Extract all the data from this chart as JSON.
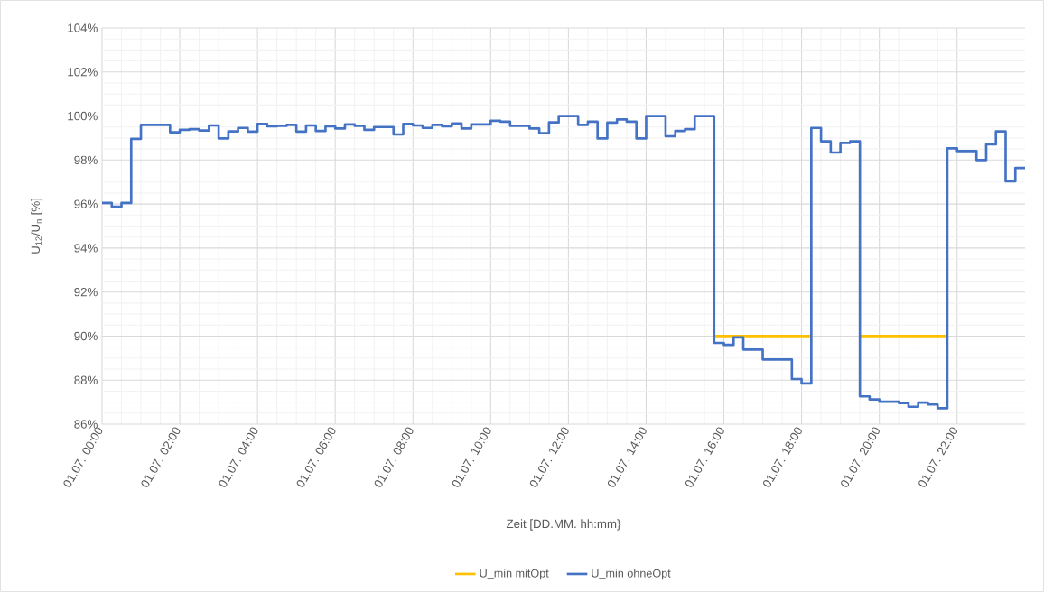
{
  "chart_data": {
    "type": "step",
    "xlabel": "Zeit [DD.MM. hh:mm}",
    "ylabel": "U$_{12}$/U$_{n}$ [%]",
    "xlim": [
      "--07-01T00:00",
      "--07-01T23:45"
    ],
    "ylim": [
      86,
      104
    ],
    "xticks": [
      {
        "value": "--07-01T00:00",
        "label": "01.07. 00:00"
      },
      {
        "value": "--07-01T02:00",
        "label": "01.07. 02:00"
      },
      {
        "value": "--07-01T04:00",
        "label": "01.07. 04:00"
      },
      {
        "value": "--07-01T06:00",
        "label": "01.07. 06:00"
      },
      {
        "value": "--07-01T08:00",
        "label": "01.07. 08:00"
      },
      {
        "value": "--07-01T10:00",
        "label": "01.07. 10:00"
      },
      {
        "value": "--07-01T12:00",
        "label": "01.07. 12:00"
      },
      {
        "value": "--07-01T14:00",
        "label": "01.07. 14:00"
      },
      {
        "value": "--07-01T16:00",
        "label": "01.07. 16:00"
      },
      {
        "value": "--07-01T18:00",
        "label": "01.07. 18:00"
      },
      {
        "value": "--07-01T20:00",
        "label": "01.07. 20:00"
      },
      {
        "value": "--07-01T22:00",
        "label": "01.07. 22:00"
      }
    ],
    "yticks": [
      {
        "value": 86,
        "label": "86%"
      },
      {
        "value": 88,
        "label": "88%"
      },
      {
        "value": 90,
        "label": "90%"
      },
      {
        "value": 92,
        "label": "92%"
      },
      {
        "value": 94,
        "label": "94%"
      },
      {
        "value": 96,
        "label": "96%"
      },
      {
        "value": 98,
        "label": "98%"
      },
      {
        "value": 100,
        "label": "100%"
      },
      {
        "value": 102,
        "label": "102%"
      },
      {
        "value": 104,
        "label": "104%"
      }
    ],
    "grid": true,
    "legend": "bottom",
    "line_style": "solid",
    "series": [
      {
        "name": "U_min mitOpt",
        "color": "#ffc000",
        "x": [
          "--07-01T15:45",
          "--07-01T18:15",
          "--07-01T19:30",
          "--07-01T21:45"
        ],
        "values": [
          90,
          null,
          90,
          90
        ]
      },
      {
        "name": "U_min ohneOpt",
        "color": "#4472c4",
        "x": [
          "--07-01T00:00",
          "--07-01T00:15",
          "--07-01T00:30",
          "--07-01T00:45",
          "--07-01T01:00",
          "--07-01T01:45",
          "--07-01T02:00",
          "--07-01T02:15",
          "--07-01T02:30",
          "--07-01T02:45",
          "--07-01T03:00",
          "--07-01T03:15",
          "--07-01T03:30",
          "--07-01T03:45",
          "--07-01T04:00",
          "--07-01T04:15",
          "--07-01T04:30",
          "--07-01T04:45",
          "--07-01T05:00",
          "--07-01T05:15",
          "--07-01T05:30",
          "--07-01T05:45",
          "--07-01T06:00",
          "--07-01T06:15",
          "--07-01T06:30",
          "--07-01T06:45",
          "--07-01T07:00",
          "--07-01T07:30",
          "--07-01T07:45",
          "--07-01T08:00",
          "--07-01T08:15",
          "--07-01T08:30",
          "--07-01T08:45",
          "--07-01T09:00",
          "--07-01T09:15",
          "--07-01T09:30",
          "--07-01T10:00",
          "--07-01T10:15",
          "--07-01T10:30",
          "--07-01T11:00",
          "--07-01T11:15",
          "--07-01T11:30",
          "--07-01T11:45",
          "--07-01T12:15",
          "--07-01T12:30",
          "--07-01T12:45",
          "--07-01T13:00",
          "--07-01T13:15",
          "--07-01T13:30",
          "--07-01T13:45",
          "--07-01T14:00",
          "--07-01T14:30",
          "--07-01T14:45",
          "--07-01T15:00",
          "--07-01T15:15",
          "--07-01T15:45",
          "--07-01T16:00",
          "--07-01T16:15",
          "--07-01T16:30",
          "--07-01T17:00",
          "--07-01T17:45",
          "--07-01T18:00",
          "--07-01T18:15",
          "--07-01T18:30",
          "--07-01T18:45",
          "--07-01T19:00",
          "--07-01T19:15",
          "--07-01T19:30",
          "--07-01T19:45",
          "--07-01T20:00",
          "--07-01T20:30",
          "--07-01T20:45",
          "--07-01T21:00",
          "--07-01T21:15",
          "--07-01T21:30",
          "--07-01T21:45",
          "--07-01T22:00",
          "--07-01T22:30",
          "--07-01T22:45",
          "--07-01T23:00",
          "--07-01T23:15",
          "--07-01T23:30",
          "--07-01T23:45"
        ],
        "values": [
          96.05,
          95.88,
          96.05,
          98.96,
          99.6,
          99.26,
          99.37,
          99.4,
          99.34,
          99.57,
          98.98,
          99.3,
          99.46,
          99.29,
          99.64,
          99.53,
          99.55,
          99.6,
          99.29,
          99.57,
          99.32,
          99.53,
          99.43,
          99.62,
          99.55,
          99.37,
          99.5,
          99.16,
          99.64,
          99.57,
          99.46,
          99.6,
          99.53,
          99.66,
          99.43,
          99.62,
          99.78,
          99.74,
          99.55,
          99.43,
          99.22,
          99.71,
          100.0,
          99.6,
          99.74,
          98.98,
          99.7,
          99.84,
          99.74,
          98.98,
          100.0,
          99.08,
          99.32,
          99.4,
          100.0,
          89.69,
          89.6,
          89.94,
          89.39,
          88.94,
          88.05,
          87.85,
          99.46,
          98.85,
          98.34,
          98.78,
          98.85,
          87.26,
          87.12,
          87.02,
          86.96,
          86.79,
          86.98,
          86.89,
          86.72,
          98.53,
          98.41,
          98.0,
          98.71,
          99.3,
          97.03,
          97.64,
          97.64
        ]
      }
    ]
  }
}
